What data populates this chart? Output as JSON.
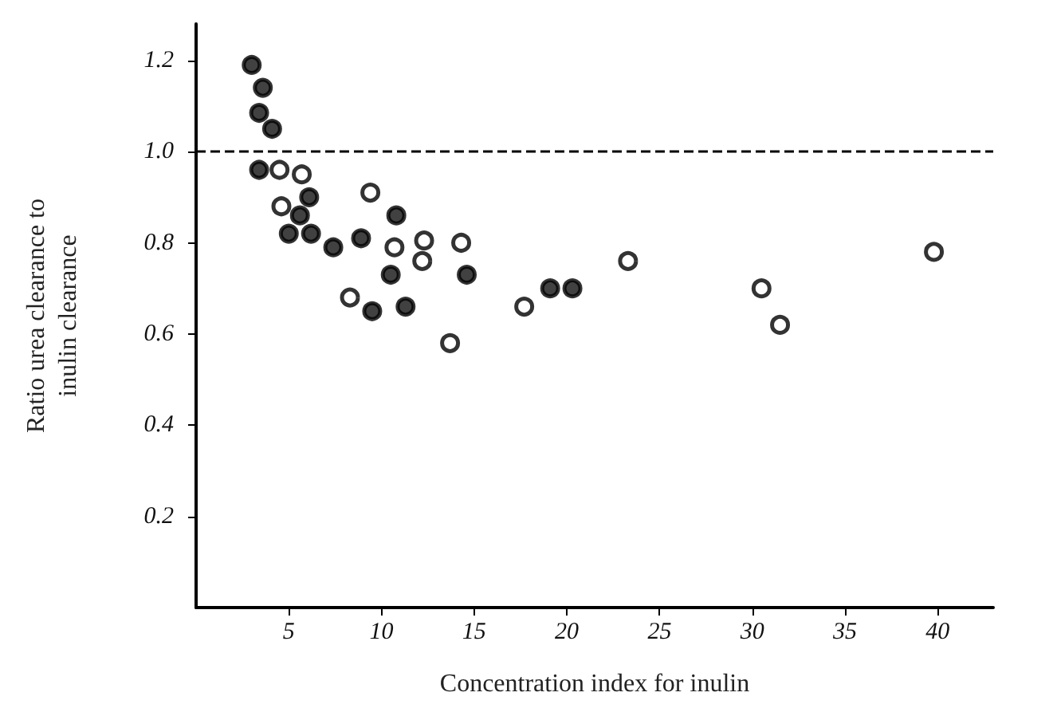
{
  "chart_data": {
    "type": "scatter",
    "xlabel": "Concentration index for inulin",
    "ylabel": "Ratio urea clearance to inulin clearance",
    "xlim": [
      0,
      43
    ],
    "xticks": [
      5,
      10,
      15,
      20,
      25,
      30,
      35,
      40
    ],
    "ylim": [
      0,
      1.28
    ],
    "yticks": [
      0.2,
      0.4,
      0.6,
      0.8,
      {
        "value": 1,
        "label": "1.0"
      },
      1.2
    ],
    "grid": false,
    "marker": "circle",
    "ref_lines": [
      {
        "axis": "y",
        "value": 1,
        "line_style": "dashed",
        "color": "#000000"
      }
    ],
    "series": [
      {
        "color": "#111111",
        "x": [
          3.0,
          3.6,
          3.4,
          4.1,
          3.4,
          6.1,
          5.6,
          5.0,
          6.2,
          7.4,
          8.9,
          10.8,
          10.5,
          9.5,
          11.3,
          14.6,
          19.1,
          20.3
        ],
        "values": [
          1.19,
          1.14,
          1.085,
          1.05,
          0.96,
          0.9,
          0.86,
          0.82,
          0.82,
          0.79,
          0.81,
          0.86,
          0.73,
          0.65,
          0.66,
          0.73,
          0.7,
          0.7
        ]
      },
      {
        "color": "#ffffff",
        "x": [
          4.5,
          5.7,
          4.6,
          9.4,
          10.7,
          12.3,
          12.2,
          14.3,
          8.3,
          13.7,
          17.7,
          23.3,
          30.5,
          31.5,
          39.8
        ],
        "values": [
          0.96,
          0.95,
          0.88,
          0.91,
          0.79,
          0.805,
          0.76,
          0.8,
          0.68,
          0.58,
          0.66,
          0.76,
          0.7,
          0.62,
          0.78
        ]
      }
    ]
  }
}
